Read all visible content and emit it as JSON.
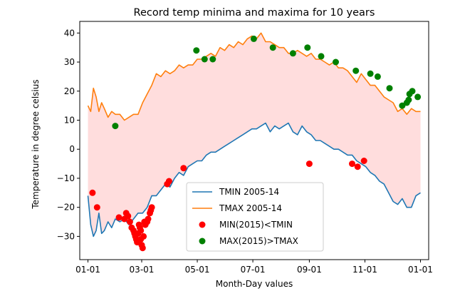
{
  "chart_data": {
    "type": "line",
    "title": "Record temp minima and maxima for 10 years",
    "xlabel": "Month-Day values",
    "ylabel": "Temperature in degree celsius",
    "xlim": [
      -9,
      374
    ],
    "ylim": [
      -38,
      44
    ],
    "xticks": [
      {
        "day": 0,
        "label": "01-01"
      },
      {
        "day": 59,
        "label": "03-01"
      },
      {
        "day": 120,
        "label": "05-01"
      },
      {
        "day": 181,
        "label": "07-01"
      },
      {
        "day": 243,
        "label": "09-01"
      },
      {
        "day": 304,
        "label": "11-01"
      },
      {
        "day": 365,
        "label": "01-01"
      }
    ],
    "yticks": [
      -30,
      -20,
      -10,
      0,
      10,
      20,
      30,
      40
    ],
    "grid": false,
    "legend_placement": "lower center",
    "fill_between": {
      "color": "#ffdddd"
    },
    "colors": {
      "tmin": "#1f77b4",
      "tmax": "#ff7f0e",
      "min2015": "#ff0000",
      "max2015": "#008000"
    },
    "series": [
      {
        "name": "TMIN 2005-14",
        "kind": "line",
        "x": [
          0,
          3,
          6,
          9,
          12,
          15,
          18,
          22,
          26,
          30,
          35,
          40,
          45,
          50,
          55,
          60,
          65,
          70,
          75,
          80,
          85,
          90,
          95,
          100,
          105,
          110,
          115,
          120,
          125,
          130,
          135,
          140,
          145,
          150,
          155,
          160,
          165,
          170,
          175,
          180,
          185,
          190,
          195,
          200,
          205,
          210,
          215,
          220,
          225,
          230,
          235,
          240,
          245,
          250,
          255,
          260,
          265,
          270,
          275,
          280,
          285,
          290,
          295,
          300,
          305,
          310,
          315,
          320,
          325,
          330,
          335,
          340,
          345,
          350,
          355,
          360,
          365
        ],
        "y": [
          -16,
          -26,
          -30,
          -28,
          -22,
          -29,
          -28,
          -25,
          -27,
          -24,
          -25,
          -24,
          -26,
          -24,
          -22,
          -22,
          -20,
          -16,
          -16,
          -14,
          -12,
          -13,
          -10,
          -8,
          -9,
          -6,
          -5,
          -4,
          -4,
          -2,
          -1,
          -1,
          0,
          1,
          2,
          3,
          4,
          5,
          6,
          7,
          7,
          8,
          9,
          6,
          8,
          7,
          8,
          9,
          6,
          5,
          8,
          6,
          5,
          3,
          3,
          2,
          1,
          0,
          0,
          -1,
          -2,
          -2,
          -4,
          -5,
          -6,
          -8,
          -9,
          -11,
          -12,
          -15,
          -18,
          -19,
          -17,
          -20,
          -20,
          -16,
          -15
        ]
      },
      {
        "name": "TMAX 2005-14",
        "kind": "line",
        "x": [
          0,
          3,
          6,
          9,
          12,
          15,
          18,
          22,
          26,
          30,
          35,
          40,
          45,
          50,
          55,
          60,
          65,
          70,
          75,
          80,
          85,
          90,
          95,
          100,
          105,
          110,
          115,
          120,
          125,
          130,
          135,
          140,
          145,
          150,
          155,
          160,
          165,
          170,
          175,
          180,
          185,
          190,
          195,
          200,
          205,
          210,
          215,
          220,
          225,
          230,
          235,
          240,
          245,
          250,
          255,
          260,
          265,
          270,
          275,
          280,
          285,
          290,
          295,
          300,
          305,
          310,
          315,
          320,
          325,
          330,
          335,
          340,
          345,
          350,
          355,
          360,
          365
        ],
        "y": [
          15,
          13,
          21,
          18,
          13,
          16,
          14,
          11,
          13,
          12,
          12,
          10,
          11,
          12,
          12,
          16,
          19,
          22,
          26,
          25,
          27,
          26,
          27,
          29,
          28,
          29,
          29,
          31,
          31,
          32,
          33,
          32,
          35,
          34,
          36,
          35,
          37,
          36,
          38,
          39,
          38,
          40,
          37,
          37,
          36,
          35,
          35,
          33,
          33,
          34,
          33,
          32,
          33,
          31,
          31,
          30,
          29,
          30,
          28,
          28,
          27,
          25,
          23,
          26,
          24,
          22,
          22,
          20,
          18,
          17,
          16,
          13,
          14,
          12,
          14,
          13,
          13
        ]
      },
      {
        "name": "MIN(2015)<TMIN",
        "kind": "scatter",
        "x": [
          5,
          10,
          34,
          40,
          42,
          44,
          46,
          48,
          50,
          51,
          52,
          53,
          54,
          55,
          56,
          57,
          58,
          58,
          59,
          60,
          61,
          62,
          63,
          65,
          66,
          68,
          69,
          70,
          87,
          89,
          105,
          243,
          290,
          296,
          303
        ],
        "y": [
          -15,
          -20,
          -23.5,
          -24,
          -22,
          -23,
          -25,
          -27,
          -28,
          -29,
          -30,
          -31,
          -32,
          -29,
          -26,
          -27,
          -28,
          -31,
          -33,
          -34,
          -30,
          -25,
          -26,
          -25,
          -24,
          -22,
          -21,
          -20,
          -12,
          -11,
          -6.5,
          -5,
          -5,
          -6,
          -4
        ]
      },
      {
        "name": "MAX(2015)>TMAX",
        "kind": "scatter",
        "x": [
          30,
          119,
          128,
          137,
          182,
          203,
          225,
          241,
          256,
          272,
          294,
          310,
          318,
          331,
          345,
          350,
          352,
          353,
          356,
          362
        ],
        "y": [
          8,
          34,
          31,
          31,
          38,
          35,
          33,
          35,
          32,
          30,
          27,
          26,
          25,
          21,
          15,
          16,
          17,
          19,
          20,
          18
        ]
      }
    ]
  }
}
